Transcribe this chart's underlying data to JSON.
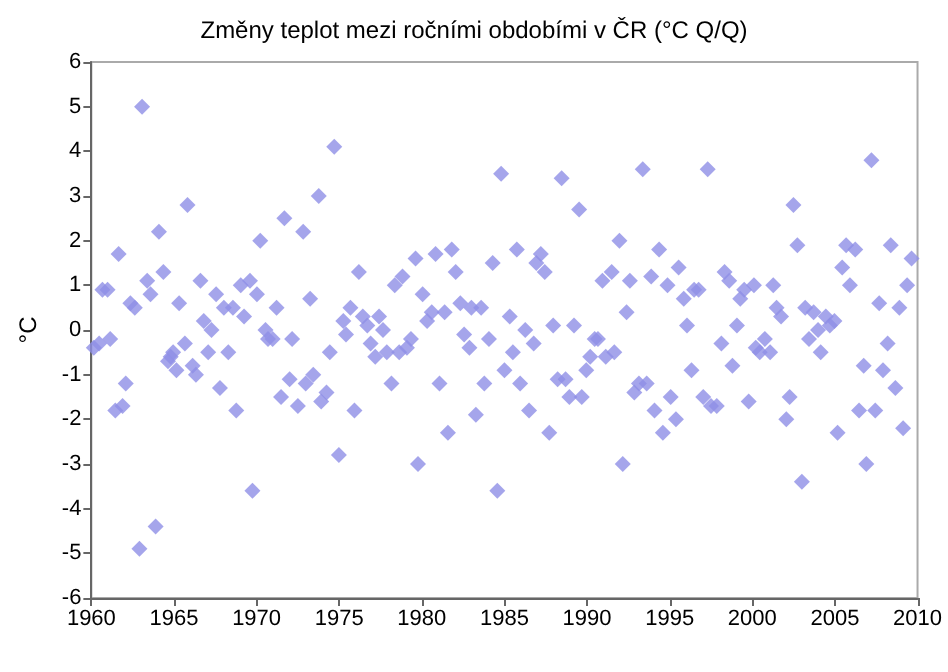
{
  "chart_data": {
    "type": "scatter",
    "title": "Změny teplot mezi ročními obdobími v ČR (°C Q/Q)",
    "ylabel": "°C",
    "marker": "diamond",
    "xlim": [
      1960,
      2010
    ],
    "xticks": [
      1960,
      1965,
      1970,
      1975,
      1980,
      1985,
      1990,
      1995,
      2000,
      2005,
      2010
    ],
    "ylim": [
      -6,
      6
    ],
    "yticks": [
      -6,
      -5,
      -4,
      -3,
      -2,
      -1,
      0,
      1,
      2,
      3,
      4,
      5,
      6
    ],
    "series": [
      {
        "color": "#8f8fe6",
        "x": [
          1960.15,
          1960.47,
          1960.67,
          1960.98,
          1961.14,
          1961.45,
          1961.65,
          1961.89,
          1962.08,
          1962.36,
          1962.63,
          1962.91,
          1963.07,
          1963.38,
          1963.58,
          1963.89,
          1964.09,
          1964.36,
          1964.64,
          1964.8,
          1964.95,
          1965.15,
          1965.31,
          1965.66,
          1965.82,
          1966.13,
          1966.33,
          1966.6,
          1966.8,
          1967.07,
          1967.27,
          1967.55,
          1967.78,
          1968.02,
          1968.29,
          1968.57,
          1968.77,
          1969.04,
          1969.24,
          1969.6,
          1969.75,
          1970.02,
          1970.22,
          1970.54,
          1970.69,
          1970.97,
          1971.21,
          1971.48,
          1971.68,
          1972.0,
          1972.15,
          1972.5,
          1972.82,
          1972.97,
          1973.24,
          1973.43,
          1973.76,
          1973.91,
          1974.23,
          1974.43,
          1974.7,
          1974.98,
          1975.25,
          1975.41,
          1975.68,
          1975.92,
          1976.19,
          1976.43,
          1976.7,
          1976.9,
          1977.18,
          1977.41,
          1977.65,
          1977.88,
          1978.16,
          1978.36,
          1978.63,
          1978.83,
          1979.1,
          1979.34,
          1979.62,
          1979.77,
          1980.05,
          1980.32,
          1980.6,
          1980.83,
          1981.07,
          1981.38,
          1981.58,
          1981.81,
          1982.05,
          1982.33,
          1982.56,
          1982.88,
          1983.0,
          1983.27,
          1983.59,
          1983.78,
          1984.06,
          1984.29,
          1984.57,
          1984.8,
          1985.0,
          1985.32,
          1985.51,
          1985.75,
          1985.95,
          1986.26,
          1986.49,
          1986.77,
          1986.93,
          1987.2,
          1987.44,
          1987.71,
          1987.95,
          1988.22,
          1988.46,
          1988.7,
          1988.93,
          1989.21,
          1989.52,
          1989.68,
          1989.95,
          1990.19,
          1990.46,
          1990.66,
          1990.93,
          1991.13,
          1991.49,
          1991.65,
          1991.96,
          1992.16,
          1992.39,
          1992.59,
          1992.86,
          1993.14,
          1993.37,
          1993.61,
          1993.88,
          1994.08,
          1994.36,
          1994.59,
          1994.87,
          1995.06,
          1995.38,
          1995.54,
          1995.85,
          1996.05,
          1996.32,
          1996.48,
          1996.75,
          1997.03,
          1997.3,
          1997.5,
          1997.85,
          1998.13,
          1998.32,
          1998.6,
          1998.8,
          1999.07,
          1999.27,
          1999.51,
          1999.78,
          2000.1,
          2000.21,
          2000.45,
          2000.76,
          2001.08,
          2001.27,
          2001.47,
          2001.74,
          2002.06,
          2002.26,
          2002.49,
          2002.73,
          2003.0,
          2003.2,
          2003.43,
          2003.71,
          2003.98,
          2004.14,
          2004.45,
          2004.69,
          2004.97,
          2005.16,
          2005.44,
          2005.68,
          2005.91,
          2006.23,
          2006.46,
          2006.74,
          2006.9,
          2007.21,
          2007.44,
          2007.68,
          2007.91,
          2008.19,
          2008.38,
          2008.66,
          2008.9,
          2009.13,
          2009.37,
          2009.64
        ],
        "values": [
          -0.4,
          -0.3,
          0.9,
          0.9,
          -0.2,
          -1.8,
          1.7,
          -1.7,
          -1.2,
          0.6,
          0.5,
          -4.9,
          5.0,
          1.1,
          0.8,
          -4.4,
          2.2,
          1.3,
          -0.7,
          -0.6,
          -0.5,
          -0.9,
          0.6,
          -0.3,
          2.8,
          -0.8,
          -1.0,
          1.1,
          0.2,
          -0.5,
          0.0,
          0.8,
          -1.3,
          0.5,
          -0.5,
          0.5,
          -1.8,
          1.0,
          0.3,
          1.1,
          -3.6,
          0.8,
          2.0,
          0.0,
          -0.2,
          -0.2,
          0.5,
          -1.5,
          2.5,
          -1.1,
          -0.2,
          -1.7,
          2.2,
          -1.2,
          0.7,
          -1.0,
          3.0,
          -1.6,
          -1.4,
          -0.5,
          4.1,
          -2.8,
          0.2,
          -0.1,
          0.5,
          -1.8,
          1.3,
          0.3,
          0.1,
          -0.3,
          -0.6,
          0.3,
          0.0,
          -0.5,
          -1.2,
          1.0,
          -0.5,
          1.2,
          -0.4,
          -0.2,
          1.6,
          -3.0,
          0.8,
          0.2,
          0.4,
          1.7,
          -1.2,
          0.4,
          -2.3,
          1.8,
          1.3,
          0.6,
          -0.1,
          -0.4,
          0.5,
          -1.9,
          0.5,
          -1.2,
          -0.2,
          1.5,
          -3.6,
          3.5,
          -0.9,
          0.3,
          -0.5,
          1.8,
          -1.2,
          0.0,
          -1.8,
          -0.3,
          1.5,
          1.7,
          1.3,
          -2.3,
          0.1,
          -1.1,
          3.4,
          -1.1,
          -1.5,
          0.1,
          2.7,
          -1.5,
          -0.9,
          -0.6,
          -0.2,
          -0.2,
          1.1,
          -0.6,
          1.3,
          -0.5,
          2.0,
          -3.0,
          0.4,
          1.1,
          -1.4,
          -1.2,
          3.6,
          -1.2,
          1.2,
          -1.8,
          1.8,
          -2.3,
          1.0,
          -1.5,
          -2.0,
          1.4,
          0.7,
          0.1,
          -0.9,
          0.9,
          0.9,
          -1.5,
          3.6,
          -1.7,
          -1.7,
          -0.3,
          1.3,
          1.1,
          -0.8,
          0.1,
          0.7,
          0.9,
          -1.6,
          1.0,
          -0.4,
          -0.5,
          -0.2,
          -0.5,
          1.0,
          0.5,
          0.3,
          -2.0,
          -1.5,
          2.8,
          1.9,
          -3.4,
          0.5,
          -0.2,
          0.4,
          0.0,
          -0.5,
          0.3,
          0.1,
          0.2,
          -2.3,
          1.4,
          1.9,
          1.0,
          1.8,
          -1.8,
          -0.8,
          -3.0,
          3.8,
          -1.8,
          0.6,
          -0.9,
          -0.3,
          1.9,
          -1.3,
          0.5,
          -2.2,
          1.0,
          1.6
        ]
      }
    ]
  }
}
